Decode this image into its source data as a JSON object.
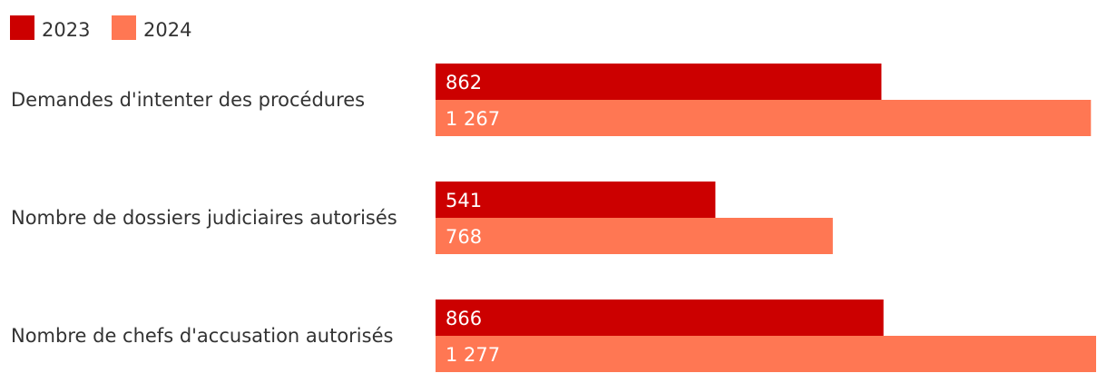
{
  "chart_data": {
    "type": "bar",
    "orientation": "horizontal",
    "categories": [
      "Demandes d'intenter des procédures",
      "Nombre de dossiers judiciaires autorisés",
      "Nombre de chefs d'accusation autorisés"
    ],
    "series": [
      {
        "name": "2023",
        "color": "#cc0000",
        "values": [
          862,
          541,
          866
        ],
        "labels": [
          "862",
          "541",
          "866"
        ]
      },
      {
        "name": "2024",
        "color": "#ff7753",
        "values": [
          1267,
          768,
          1277
        ],
        "labels": [
          "1 267",
          "768",
          "1 277"
        ]
      }
    ],
    "xlim": [
      0,
      1277
    ],
    "grid": false,
    "legend": "top-left"
  }
}
